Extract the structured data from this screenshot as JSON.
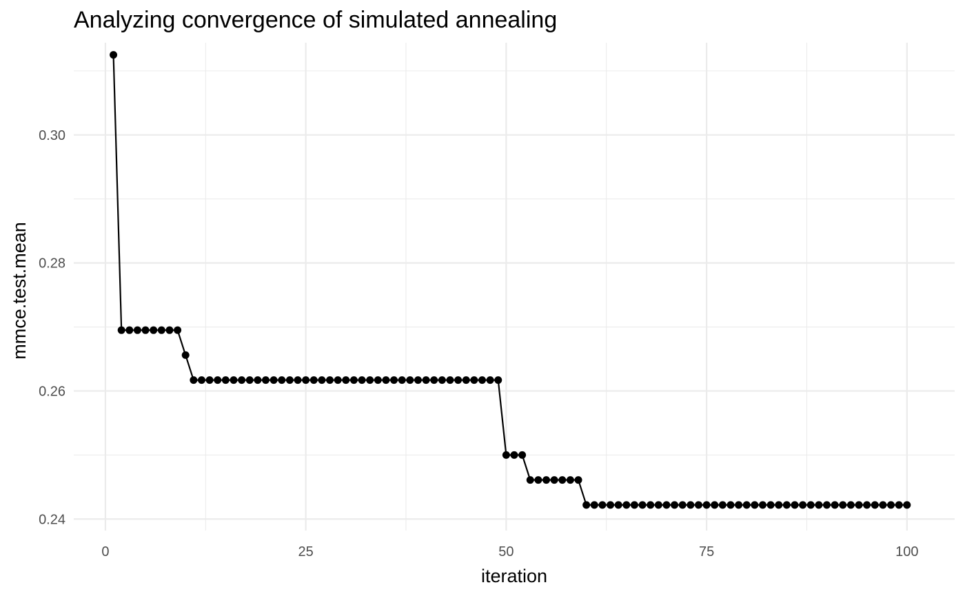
{
  "chart_data": {
    "type": "line",
    "title": "Analyzing convergence of simulated annealing",
    "xlabel": "iteration",
    "ylabel": "mmce.test.mean",
    "xlim": [
      -3.95,
      105.95
    ],
    "ylim": [
      0.2382,
      0.3144
    ],
    "x_ticks": [
      0,
      25,
      50,
      75,
      100
    ],
    "x_tick_labels": [
      "0",
      "25",
      "50",
      "75",
      "100"
    ],
    "y_ticks": [
      0.24,
      0.26,
      0.28,
      0.3
    ],
    "y_tick_labels": [
      "0.24",
      "0.26",
      "0.28",
      "0.30"
    ],
    "x_minor_ticks": [
      12.5,
      37.5,
      62.5,
      87.5
    ],
    "y_minor_ticks": [
      0.25,
      0.27,
      0.29,
      0.31
    ],
    "grid": true,
    "legend": "none",
    "colors": {
      "series": "#000000",
      "grid": "#ebebeb",
      "tick_text": "#4d4d4d",
      "text": "#000000",
      "background": "#ffffff"
    },
    "x": [
      1,
      2,
      3,
      4,
      5,
      6,
      7,
      8,
      9,
      10,
      11,
      12,
      13,
      14,
      15,
      16,
      17,
      18,
      19,
      20,
      21,
      22,
      23,
      24,
      25,
      26,
      27,
      28,
      29,
      30,
      31,
      32,
      33,
      34,
      35,
      36,
      37,
      38,
      39,
      40,
      41,
      42,
      43,
      44,
      45,
      46,
      47,
      48,
      49,
      50,
      51,
      52,
      53,
      54,
      55,
      56,
      57,
      58,
      59,
      60,
      61,
      62,
      63,
      64,
      65,
      66,
      67,
      68,
      69,
      70,
      71,
      72,
      73,
      74,
      75,
      76,
      77,
      78,
      79,
      80,
      81,
      82,
      83,
      84,
      85,
      86,
      87,
      88,
      89,
      90,
      91,
      92,
      93,
      94,
      95,
      96,
      97,
      98,
      99,
      100
    ],
    "values": [
      0.3125,
      0.2695,
      0.2695,
      0.2695,
      0.2695,
      0.2695,
      0.2695,
      0.2695,
      0.2695,
      0.2656,
      0.2617,
      0.2617,
      0.2617,
      0.2617,
      0.2617,
      0.2617,
      0.2617,
      0.2617,
      0.2617,
      0.2617,
      0.2617,
      0.2617,
      0.2617,
      0.2617,
      0.2617,
      0.2617,
      0.2617,
      0.2617,
      0.2617,
      0.2617,
      0.2617,
      0.2617,
      0.2617,
      0.2617,
      0.2617,
      0.2617,
      0.2617,
      0.2617,
      0.2617,
      0.2617,
      0.2617,
      0.2617,
      0.2617,
      0.2617,
      0.2617,
      0.2617,
      0.2617,
      0.2617,
      0.2617,
      0.25,
      0.25,
      0.25,
      0.2461,
      0.2461,
      0.2461,
      0.2461,
      0.2461,
      0.2461,
      0.2461,
      0.2422,
      0.2422,
      0.2422,
      0.2422,
      0.2422,
      0.2422,
      0.2422,
      0.2422,
      0.2422,
      0.2422,
      0.2422,
      0.2422,
      0.2422,
      0.2422,
      0.2422,
      0.2422,
      0.2422,
      0.2422,
      0.2422,
      0.2422,
      0.2422,
      0.2422,
      0.2422,
      0.2422,
      0.2422,
      0.2422,
      0.2422,
      0.2422,
      0.2422,
      0.2422,
      0.2422,
      0.2422,
      0.2422,
      0.2422,
      0.2422,
      0.2422,
      0.2422,
      0.2422,
      0.2422,
      0.2422,
      0.2422
    ]
  }
}
